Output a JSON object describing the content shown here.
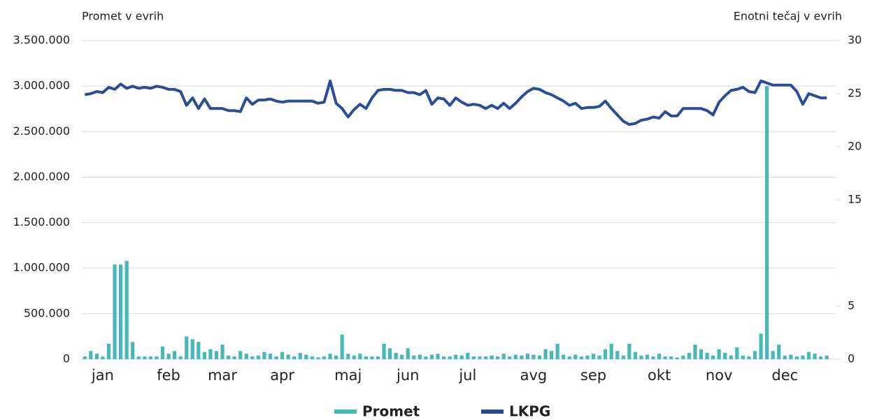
{
  "chart_data": {
    "type": "bar",
    "y_label": "Promet v evrih",
    "y2_label": "Enotni tečaj v evrih",
    "categories": [
      null,
      null,
      null,
      "jan",
      null,
      null,
      null,
      null,
      null,
      null,
      null,
      null,
      null,
      null,
      "feb",
      null,
      null,
      null,
      null,
      null,
      null,
      null,
      null,
      "mar",
      null,
      null,
      null,
      null,
      null,
      null,
      null,
      null,
      null,
      "apr",
      null,
      null,
      null,
      null,
      null,
      null,
      null,
      null,
      null,
      null,
      "maj",
      null,
      null,
      null,
      null,
      null,
      null,
      null,
      null,
      null,
      "jun",
      null,
      null,
      null,
      null,
      null,
      null,
      null,
      null,
      null,
      "jul",
      null,
      null,
      null,
      null,
      null,
      null,
      null,
      null,
      null,
      null,
      "avg",
      null,
      null,
      null,
      null,
      null,
      null,
      null,
      null,
      null,
      "sep",
      null,
      null,
      null,
      null,
      null,
      null,
      null,
      null,
      null,
      null,
      "okt",
      null,
      null,
      null,
      null,
      null,
      null,
      null,
      null,
      null,
      "nov",
      null,
      null,
      null,
      null,
      null,
      null,
      null,
      null,
      null,
      null,
      "dec",
      null,
      null,
      null,
      null,
      null,
      null,
      null,
      null
    ],
    "series": [
      {
        "name": "Promet",
        "type": "bar",
        "axis": "y",
        "color": "#45b8b8",
        "values": [
          30000,
          90000,
          60000,
          30000,
          170000,
          1040000,
          1040000,
          1080000,
          190000,
          30000,
          30000,
          30000,
          30000,
          140000,
          60000,
          90000,
          30000,
          250000,
          220000,
          190000,
          80000,
          110000,
          90000,
          160000,
          40000,
          30000,
          90000,
          60000,
          30000,
          40000,
          80000,
          60000,
          30000,
          80000,
          50000,
          30000,
          70000,
          50000,
          30000,
          20000,
          30000,
          60000,
          40000,
          270000,
          60000,
          40000,
          60000,
          30000,
          30000,
          30000,
          170000,
          120000,
          70000,
          50000,
          120000,
          40000,
          50000,
          30000,
          50000,
          60000,
          30000,
          30000,
          50000,
          40000,
          70000,
          30000,
          30000,
          30000,
          40000,
          30000,
          60000,
          30000,
          50000,
          40000,
          60000,
          50000,
          40000,
          110000,
          90000,
          170000,
          50000,
          30000,
          50000,
          30000,
          40000,
          60000,
          40000,
          110000,
          170000,
          90000,
          40000,
          170000,
          80000,
          40000,
          50000,
          30000,
          60000,
          30000,
          30000,
          20000,
          40000,
          70000,
          160000,
          110000,
          70000,
          40000,
          110000,
          70000,
          40000,
          130000,
          40000,
          30000,
          90000,
          280000,
          3000000,
          90000,
          160000,
          40000,
          50000,
          30000,
          40000,
          80000,
          60000,
          30000,
          40000,
          null
        ]
      },
      {
        "name": "LKPG",
        "type": "line",
        "axis": "y2",
        "color": "#2a4e96",
        "values": [
          24.9,
          25.0,
          25.2,
          25.1,
          25.6,
          25.4,
          25.9,
          25.5,
          25.7,
          25.5,
          25.6,
          25.5,
          25.7,
          25.6,
          25.4,
          25.4,
          25.2,
          23.9,
          24.6,
          23.6,
          24.5,
          23.6,
          23.6,
          23.6,
          23.4,
          23.4,
          23.3,
          24.6,
          24.0,
          24.4,
          24.4,
          24.5,
          24.3,
          24.2,
          24.3,
          24.3,
          24.3,
          24.3,
          24.3,
          24.1,
          24.2,
          26.2,
          24.1,
          23.6,
          22.8,
          23.5,
          24.0,
          23.6,
          24.6,
          25.3,
          25.4,
          25.4,
          25.3,
          25.3,
          25.1,
          25.1,
          24.9,
          25.3,
          24.0,
          24.6,
          24.5,
          23.9,
          24.6,
          24.2,
          23.9,
          24.0,
          23.9,
          23.6,
          23.9,
          23.6,
          24.1,
          23.6,
          24.1,
          24.7,
          25.2,
          25.5,
          25.4,
          25.1,
          24.9,
          24.6,
          24.3,
          23.9,
          24.1,
          23.6,
          23.7,
          23.7,
          23.8,
          24.3,
          23.6,
          23.0,
          22.4,
          22.1,
          22.2,
          22.5,
          22.6,
          22.8,
          22.7,
          23.3,
          22.9,
          22.9,
          23.6,
          23.6,
          23.6,
          23.6,
          23.4,
          23.0,
          24.2,
          24.8,
          25.3,
          25.4,
          25.6,
          25.2,
          25.1,
          26.2,
          26.0,
          25.8,
          25.8,
          25.8,
          25.8,
          25.2,
          24.0,
          25.0,
          24.8,
          24.6,
          24.6,
          null
        ]
      }
    ],
    "ylim": [
      0,
      3500000
    ],
    "yticks": [
      0,
      {
        "value": 500000,
        "label": "500.000"
      },
      {
        "value": 1000000,
        "label": "1.000.000"
      },
      {
        "value": 1500000,
        "label": "1.500.000"
      },
      {
        "value": 2000000,
        "label": "2.000.000"
      },
      {
        "value": 2500000,
        "label": "2.500.000"
      },
      {
        "value": 3000000,
        "label": "3.000.000"
      },
      {
        "value": 3500000,
        "label": "3.500.000"
      }
    ],
    "y2lim": [
      0,
      30
    ],
    "y2ticks": [
      0,
      5,
      15,
      20,
      25,
      30
    ],
    "grid": true,
    "legend": "bottom"
  }
}
